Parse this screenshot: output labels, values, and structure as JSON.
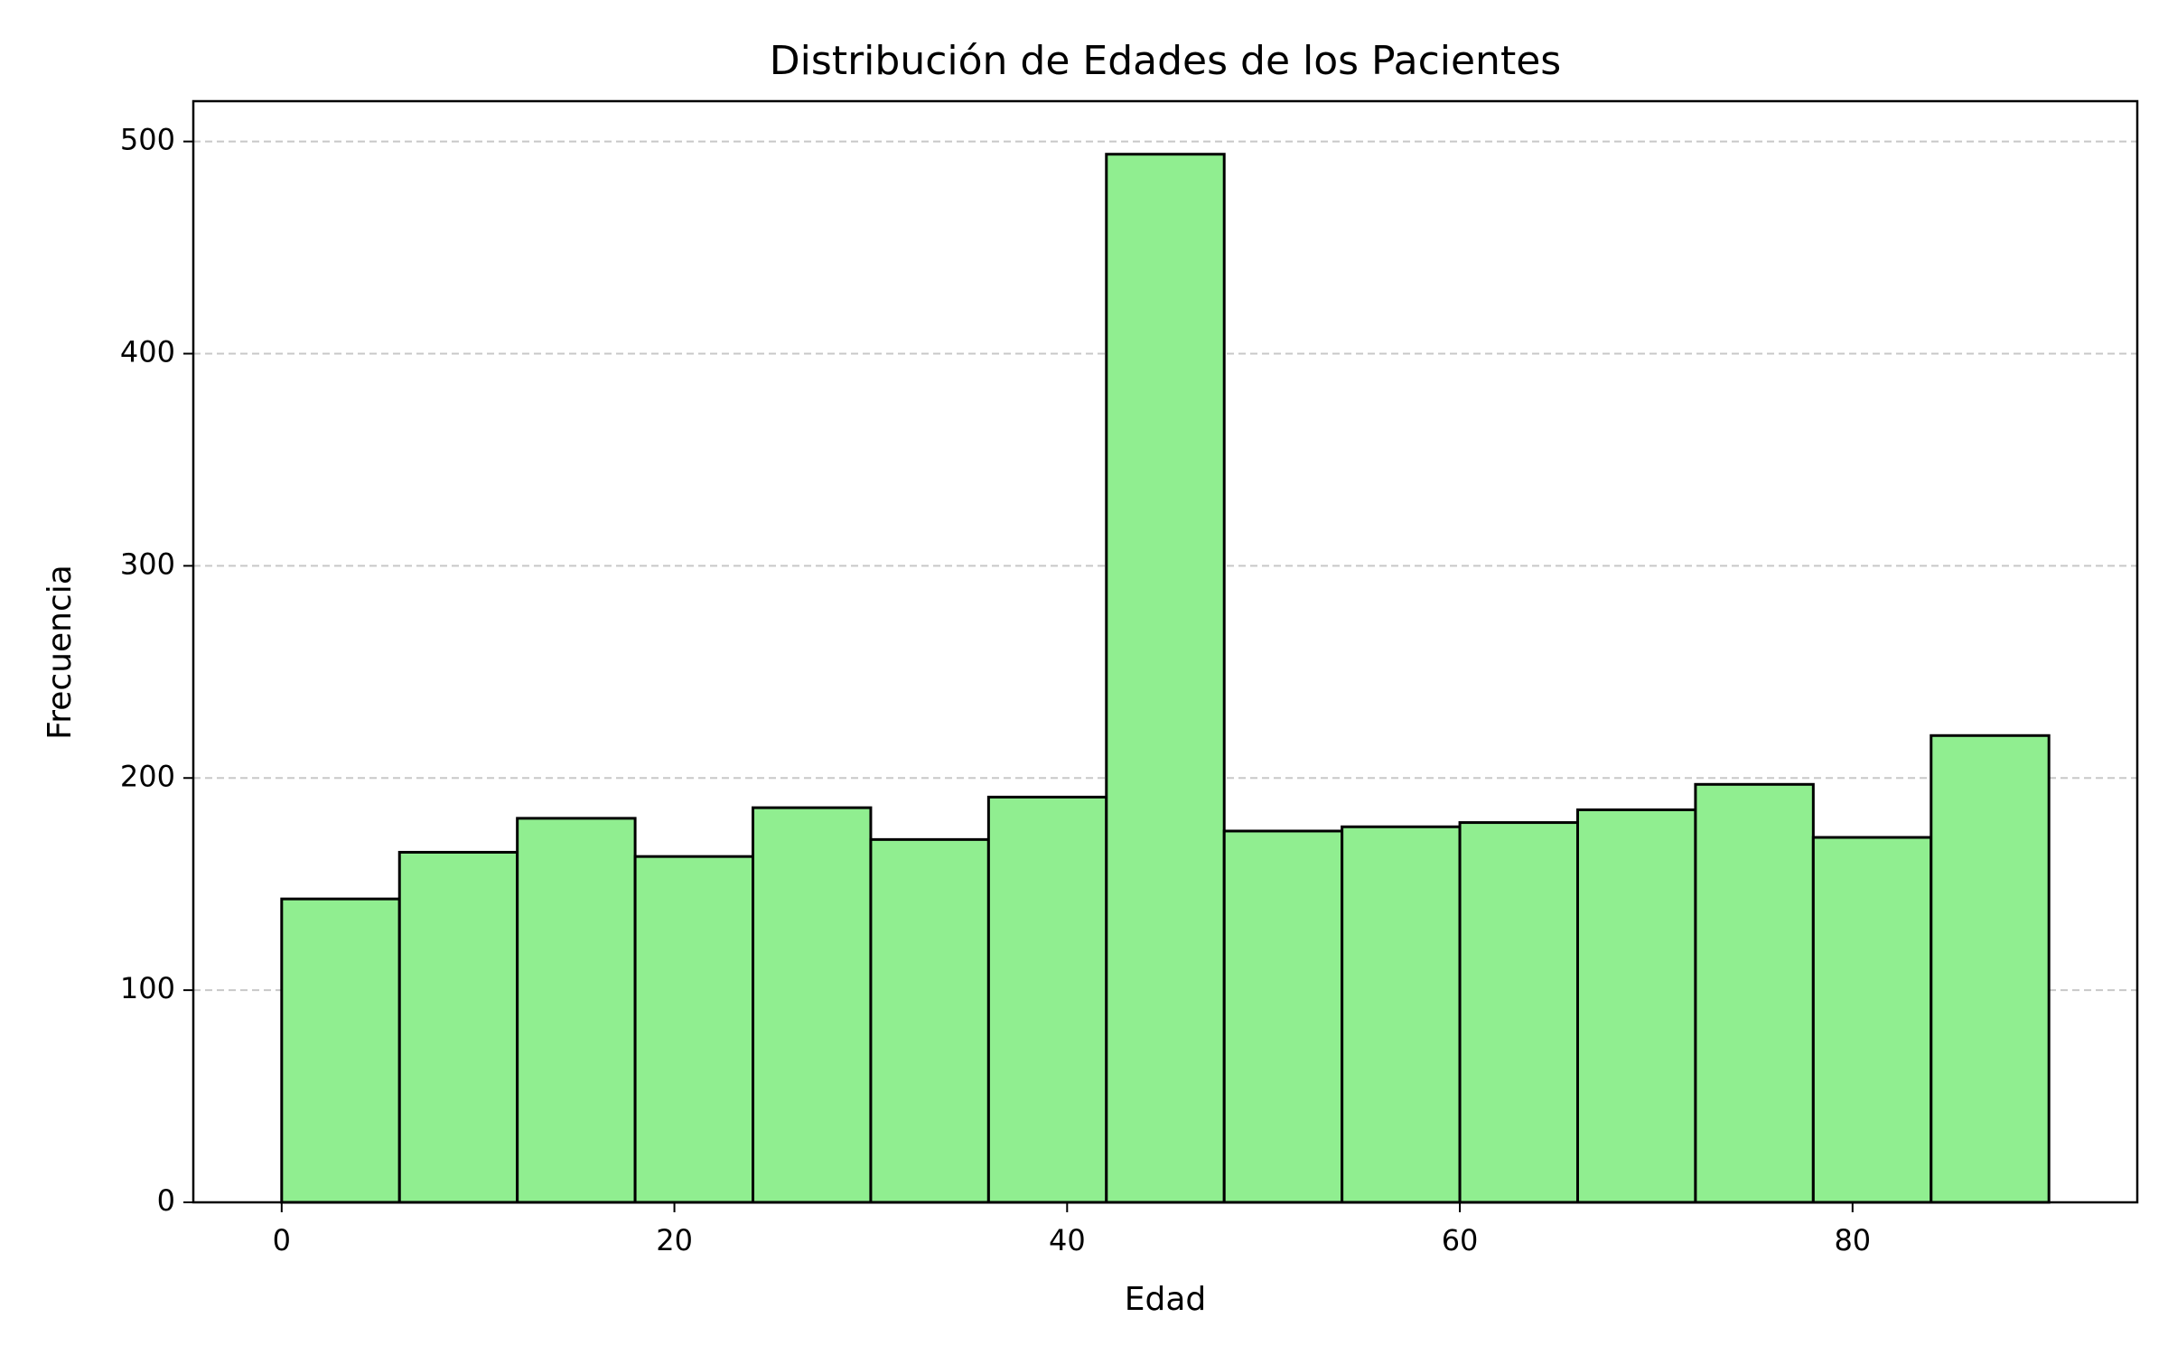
{
  "chart_data": {
    "type": "histogram",
    "title": "Distribución de Edades de los Pacientes",
    "xlabel": "Edad",
    "ylabel": "Frecuencia",
    "bins": [
      0,
      6,
      12,
      18,
      24,
      30,
      36,
      42,
      48,
      54,
      60,
      66,
      72,
      78,
      84,
      90
    ],
    "values": [
      143,
      165,
      181,
      163,
      186,
      171,
      191,
      494,
      175,
      177,
      179,
      185,
      197,
      172,
      220
    ],
    "color": "#90ee90",
    "edgecolor": "#000000",
    "xlim": [
      -4.5,
      94.5
    ],
    "xticks": [
      0,
      20,
      40,
      60,
      80
    ],
    "ylim": [
      0,
      519
    ],
    "yticks": [
      0,
      100,
      200,
      300,
      400,
      500
    ],
    "grid": true
  }
}
